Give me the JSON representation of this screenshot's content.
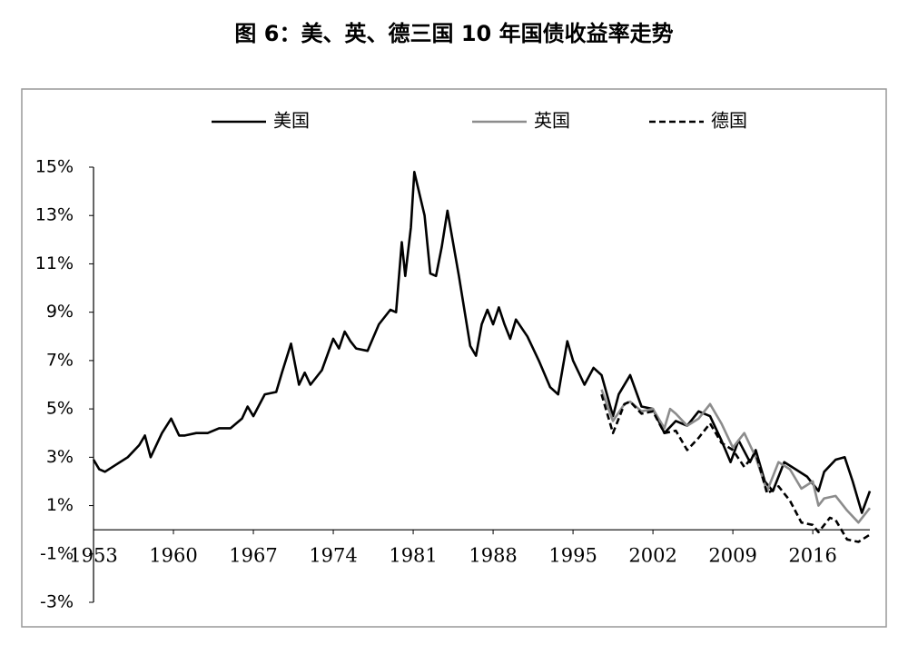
{
  "chart_data": {
    "type": "line",
    "title": "图 6：美、英、德三国 10 年国债收益率走势",
    "xlim": [
      1953,
      2021
    ],
    "xticks": [
      1953,
      1960,
      1967,
      1974,
      1981,
      1988,
      1995,
      2002,
      2009,
      2016
    ],
    "ylim": [
      -3,
      15
    ],
    "yticks": [
      {
        "value": -3,
        "label": "-3%"
      },
      {
        "value": -1,
        "label": "-1%"
      },
      {
        "value": 1,
        "label": "1%"
      },
      {
        "value": 3,
        "label": "3%"
      },
      {
        "value": 5,
        "label": "5%"
      },
      {
        "value": 7,
        "label": "7%"
      },
      {
        "value": 9,
        "label": "9%"
      },
      {
        "value": 11,
        "label": "11%"
      },
      {
        "value": 13,
        "label": "13%"
      },
      {
        "value": 15,
        "label": "15%"
      }
    ],
    "grid": false,
    "legend": "top",
    "series": [
      {
        "name": "美国",
        "color": "#000000",
        "line_style": "solid",
        "x": [
          1953,
          1953.5,
          1954,
          1955,
          1956,
          1957,
          1957.5,
          1958,
          1959,
          1959.8,
          1960.5,
          1961,
          1962,
          1963,
          1964,
          1965,
          1966,
          1966.5,
          1967,
          1968,
          1969,
          1969.5,
          1970.3,
          1971,
          1971.5,
          1972,
          1973,
          1974,
          1974.5,
          1975,
          1975.5,
          1976,
          1977,
          1978,
          1979,
          1979.5,
          1980,
          1980.3,
          1980.8,
          1981.1,
          1981.5,
          1982,
          1982.5,
          1983,
          1983.5,
          1984,
          1985,
          1986,
          1986.5,
          1987,
          1987.5,
          1988,
          1988.5,
          1989,
          1989.5,
          1990,
          1991,
          1992,
          1993,
          1993.7,
          1994.5,
          1995,
          1996,
          1996.8,
          1997.5,
          1998.5,
          1999,
          2000,
          2001,
          2002,
          2003,
          2004,
          2005,
          2006,
          2007,
          2008,
          2008.8,
          2009.5,
          2010.5,
          2011,
          2011.8,
          2012.5,
          2013.5,
          2014.5,
          2015.5,
          2016.5,
          2017,
          2018,
          2018.8,
          2019.5,
          2020.3,
          2021
        ],
        "values": [
          2.9,
          2.5,
          2.4,
          2.7,
          3.0,
          3.5,
          3.9,
          3.0,
          4.0,
          4.6,
          3.9,
          3.9,
          4.0,
          4.0,
          4.2,
          4.2,
          4.6,
          5.1,
          4.7,
          5.6,
          5.7,
          6.5,
          7.7,
          6.0,
          6.5,
          6.0,
          6.6,
          7.9,
          7.5,
          8.2,
          7.8,
          7.5,
          7.4,
          8.5,
          9.1,
          9.0,
          11.9,
          10.5,
          12.5,
          14.8,
          14.0,
          13.0,
          10.6,
          10.5,
          11.7,
          13.2,
          10.5,
          7.6,
          7.2,
          8.5,
          9.1,
          8.5,
          9.2,
          8.5,
          7.9,
          8.7,
          8.0,
          7.0,
          5.9,
          5.6,
          7.8,
          7.0,
          6.0,
          6.7,
          6.4,
          4.7,
          5.6,
          6.4,
          5.1,
          5.0,
          4.0,
          4.5,
          4.3,
          4.9,
          4.7,
          3.7,
          2.8,
          3.7,
          2.8,
          3.3,
          2.0,
          1.6,
          2.8,
          2.5,
          2.2,
          1.6,
          2.4,
          2.9,
          3.0,
          2.0,
          0.7,
          1.6
        ]
      },
      {
        "name": "英国",
        "color": "#8c8c8c",
        "line_style": "solid",
        "x": [
          1997.5,
          1998.5,
          1999.5,
          2000,
          2001,
          2002,
          2003,
          2003.5,
          2004,
          2005,
          2006,
          2007,
          2008,
          2009,
          2010,
          2011,
          2012,
          2013,
          2014,
          2015,
          2016,
          2016.5,
          2017,
          2018,
          2019,
          2020,
          2021
        ],
        "values": [
          5.8,
          4.5,
          5.2,
          5.3,
          4.9,
          5.0,
          4.2,
          5.0,
          4.8,
          4.3,
          4.6,
          5.2,
          4.4,
          3.4,
          4.0,
          3.0,
          1.6,
          2.8,
          2.5,
          1.7,
          2.0,
          1.0,
          1.3,
          1.4,
          0.8,
          0.3,
          0.9
        ]
      },
      {
        "name": "德国",
        "color": "#000000",
        "line_style": "dashed",
        "x": [
          1997.5,
          1998.5,
          1999.5,
          2000,
          2001,
          2002,
          2003,
          2004,
          2005,
          2006,
          2007,
          2008,
          2009,
          2010,
          2011,
          2012,
          2013,
          2014,
          2015,
          2016,
          2016.5,
          2017.5,
          2018,
          2019,
          2020,
          2021
        ],
        "values": [
          5.6,
          4.0,
          5.2,
          5.3,
          4.8,
          4.9,
          4.0,
          4.1,
          3.3,
          3.8,
          4.4,
          3.6,
          3.3,
          2.6,
          3.2,
          1.5,
          1.8,
          1.2,
          0.3,
          0.2,
          -0.1,
          0.5,
          0.4,
          -0.4,
          -0.5,
          -0.2
        ]
      }
    ]
  }
}
